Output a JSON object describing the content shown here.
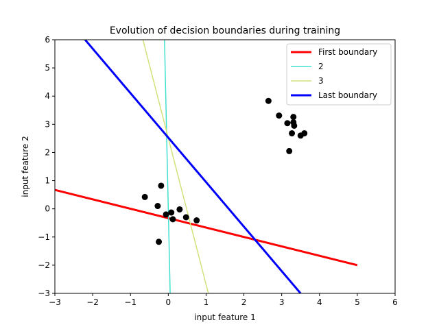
{
  "chart_data": {
    "type": "scatter",
    "title": "Evolution of decision boundaries during training",
    "xlabel": "input feature 1",
    "ylabel": "input feature 2",
    "xlim": [
      -3,
      6
    ],
    "ylim": [
      -3,
      6
    ],
    "xticks": [
      -3,
      -2,
      -1,
      0,
      1,
      2,
      3,
      4,
      5,
      6
    ],
    "yticks": [
      -3,
      -2,
      -1,
      0,
      1,
      2,
      3,
      4,
      5,
      6
    ],
    "grid": false,
    "legend_position": "top-right",
    "points": [
      {
        "x": -0.62,
        "y": 0.42
      },
      {
        "x": -0.19,
        "y": 0.82
      },
      {
        "x": -0.28,
        "y": 0.1
      },
      {
        "x": -0.06,
        "y": -0.2
      },
      {
        "x": 0.08,
        "y": -0.13
      },
      {
        "x": 0.12,
        "y": -0.37
      },
      {
        "x": 0.3,
        "y": -0.02
      },
      {
        "x": 0.47,
        "y": -0.3
      },
      {
        "x": 0.75,
        "y": -0.41
      },
      {
        "x": -0.25,
        "y": -1.17
      },
      {
        "x": 2.65,
        "y": 3.83
      },
      {
        "x": 2.93,
        "y": 3.31
      },
      {
        "x": 3.15,
        "y": 3.04
      },
      {
        "x": 3.31,
        "y": 3.26
      },
      {
        "x": 3.31,
        "y": 3.07
      },
      {
        "x": 3.33,
        "y": 2.95
      },
      {
        "x": 3.27,
        "y": 2.68
      },
      {
        "x": 3.5,
        "y": 2.6
      },
      {
        "x": 3.6,
        "y": 2.68
      },
      {
        "x": 3.2,
        "y": 2.05
      }
    ],
    "point_color": "#000000",
    "series": [
      {
        "name": "First boundary",
        "color": "#ff0000",
        "width": 3,
        "points": [
          [
            -3,
            0.67
          ],
          [
            5,
            -2.0
          ]
        ]
      },
      {
        "name": "2",
        "color": "#40e0d0",
        "width": 1.5,
        "points": [
          [
            -0.1,
            6
          ],
          [
            0.05,
            -3
          ]
        ]
      },
      {
        "name": "3",
        "color": "#d4e07a",
        "width": 1.5,
        "points": [
          [
            -0.67,
            6
          ],
          [
            1.06,
            -3
          ]
        ]
      },
      {
        "name": "Last boundary",
        "color": "#0000ff",
        "width": 3,
        "points": [
          [
            -2.2,
            6
          ],
          [
            3.5,
            -3
          ]
        ]
      }
    ]
  }
}
